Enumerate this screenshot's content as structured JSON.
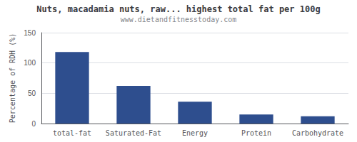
{
  "chart_data": {
    "type": "bar",
    "title": "Nuts, macadamia nuts, raw... highest total fat per 100g",
    "subtitle": "www.dietandfitnesstoday.com",
    "categories": [
      "total-fat",
      "Saturated-Fat",
      "Energy",
      "Protein",
      "Carbohydrate"
    ],
    "values": [
      118,
      62,
      36,
      15,
      12
    ],
    "color": "#2e4e8e",
    "ylabel": "Percentage of RDH (%)",
    "ylim": [
      0,
      150
    ],
    "yticks": [
      0,
      50,
      100,
      150
    ],
    "grid": true
  }
}
